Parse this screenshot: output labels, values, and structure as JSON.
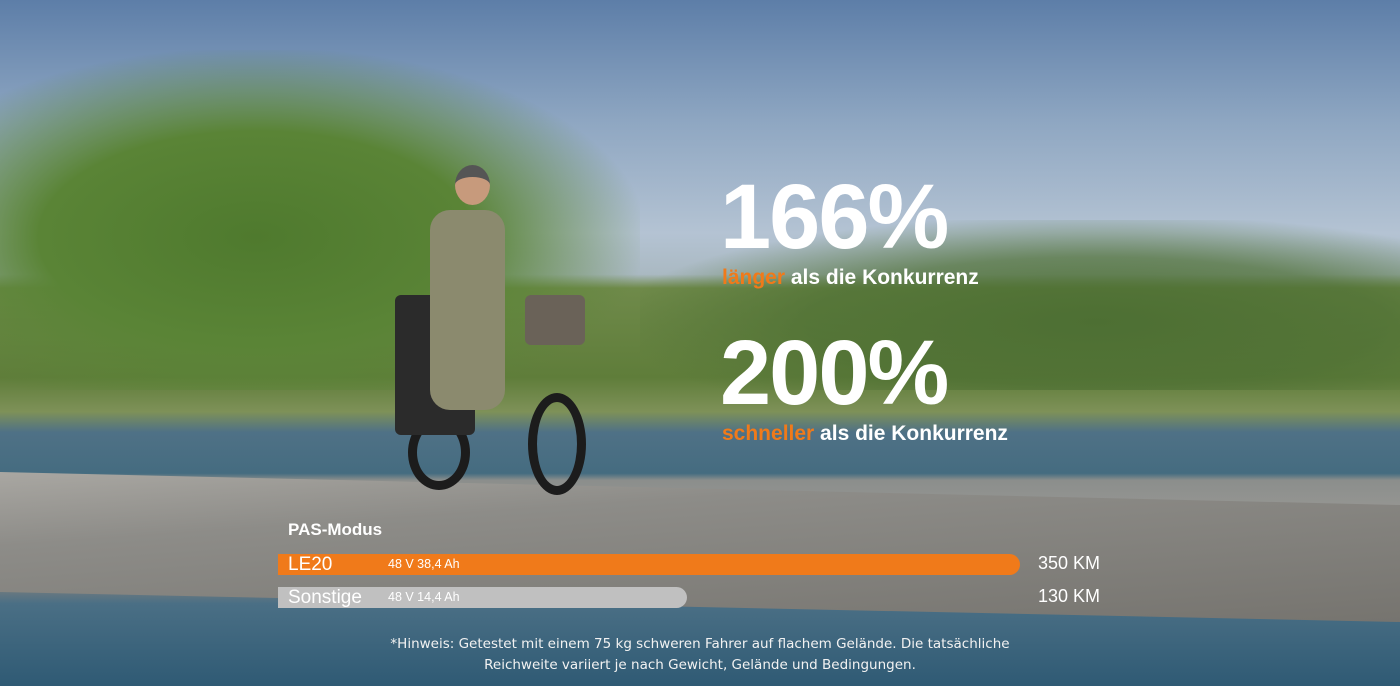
{
  "headline1": {
    "value": "166%",
    "highlight": "länger",
    "rest": " als die Konkurrenz"
  },
  "headline2": {
    "value": "200%",
    "highlight": "schneller",
    "rest": " als die Konkurrenz"
  },
  "comparison": {
    "title": "PAS-Modus",
    "bars": [
      {
        "name": "LE20",
        "spec": "48 V 38,4 Ah",
        "range": "350 KM",
        "range_km": 350,
        "color": "#f07a1a"
      },
      {
        "name": "Sonstige",
        "spec": "48 V 14,4 Ah",
        "range": "130 KM",
        "range_km": 130,
        "color": "#c0c0c0"
      }
    ]
  },
  "note": {
    "line1": "*Hinweis: Getestet mit einem 75 kg schweren Fahrer auf flachem Gelände. Die tatsächliche",
    "line2": "Reichweite variiert je nach Gewicht, Gelände und Bedingungen."
  },
  "colors": {
    "accent": "#f07a1a"
  }
}
